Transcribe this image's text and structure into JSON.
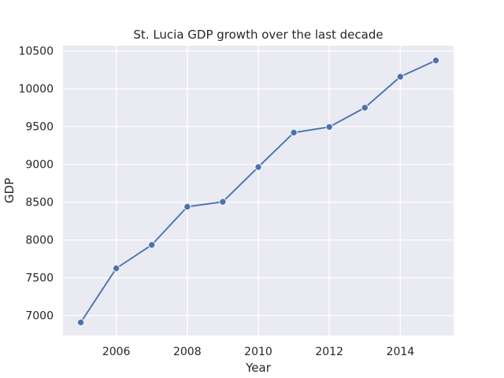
{
  "chart_data": {
    "type": "line",
    "title": "St. Lucia GDP growth over the last decade",
    "xlabel": "Year",
    "ylabel": "GDP",
    "x": [
      2005,
      2006,
      2007,
      2008,
      2009,
      2010,
      2011,
      2012,
      2013,
      2014,
      2015
    ],
    "series": [
      {
        "values": [
          6910,
          7625,
          7935,
          8440,
          8505,
          8965,
          9420,
          9495,
          9750,
          10160,
          10375
        ]
      }
    ],
    "xlim": [
      2004.5,
      2015.5
    ],
    "ylim": [
      6737,
      10570
    ],
    "xticks": [
      2006,
      2008,
      2010,
      2012,
      2014
    ],
    "yticks": [
      7000,
      7500,
      8000,
      8500,
      9000,
      9500,
      10000,
      10500
    ],
    "grid": true,
    "line_color": "#4c72b0",
    "background_color": "#eaeaf2",
    "grid_color": "#ffffff"
  }
}
